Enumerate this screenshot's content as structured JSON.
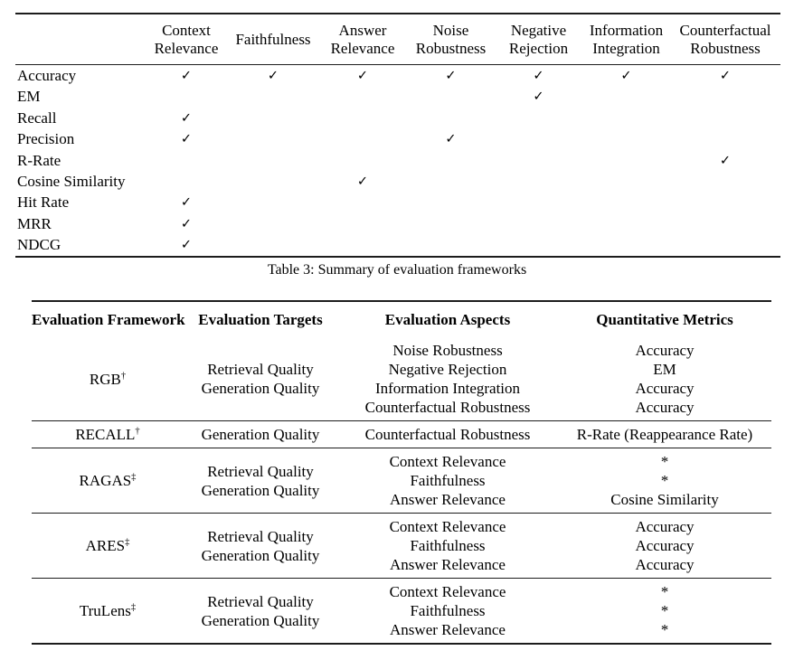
{
  "colors": {
    "background": "#ffffff",
    "text": "#000000",
    "rule": "#1c1c1c"
  },
  "check_glyph": "✓",
  "table1": {
    "columns": [
      {
        "label": "Context Relevance",
        "lines": [
          "Context",
          "Relevance"
        ]
      },
      {
        "label": "Faithfulness",
        "lines": [
          "Faithfulness"
        ]
      },
      {
        "label": "Answer Relevance",
        "lines": [
          "Answer",
          "Relevance"
        ]
      },
      {
        "label": "Noise Robustness",
        "lines": [
          "Noise",
          "Robustness"
        ]
      },
      {
        "label": "Negative Rejection",
        "lines": [
          "Negative",
          "Rejection"
        ]
      },
      {
        "label": "Information Integration",
        "lines": [
          "Information",
          "Integration"
        ]
      },
      {
        "label": "Counterfactual Robustness",
        "lines": [
          "Counterfactual",
          "Robustness"
        ]
      }
    ],
    "rows": [
      {
        "label": "Accuracy",
        "checks": [
          1,
          1,
          1,
          1,
          1,
          1,
          1
        ]
      },
      {
        "label": "EM",
        "checks": [
          0,
          0,
          0,
          0,
          1,
          0,
          0
        ]
      },
      {
        "label": "Recall",
        "checks": [
          1,
          0,
          0,
          0,
          0,
          0,
          0
        ]
      },
      {
        "label": "Precision",
        "checks": [
          1,
          0,
          0,
          1,
          0,
          0,
          0
        ]
      },
      {
        "label": "R-Rate",
        "checks": [
          0,
          0,
          0,
          0,
          0,
          0,
          1
        ]
      },
      {
        "label": "Cosine Similarity",
        "checks": [
          0,
          0,
          1,
          0,
          0,
          0,
          0
        ]
      },
      {
        "label": "Hit Rate",
        "checks": [
          1,
          0,
          0,
          0,
          0,
          0,
          0
        ]
      },
      {
        "label": "MRR",
        "checks": [
          1,
          0,
          0,
          0,
          0,
          0,
          0
        ]
      },
      {
        "label": "NDCG",
        "checks": [
          1,
          0,
          0,
          0,
          0,
          0,
          0
        ]
      }
    ]
  },
  "caption": "Table 3: Summary of evaluation frameworks",
  "table2": {
    "headers": [
      "Evaluation Framework",
      "Evaluation Targets",
      "Evaluation Aspects",
      "Quantitative Metrics"
    ],
    "rows": [
      {
        "framework": "RGB",
        "sup": "†",
        "targets": [
          "Retrieval Quality",
          "Generation Quality"
        ],
        "aspects": [
          "Noise Robustness",
          "Negative Rejection",
          "Information Integration",
          "Counterfactual Robustness"
        ],
        "metrics": [
          "Accuracy",
          "EM",
          "Accuracy",
          "Accuracy"
        ]
      },
      {
        "framework": "RECALL",
        "sup": "†",
        "targets": [
          "Generation Quality"
        ],
        "aspects": [
          "Counterfactual Robustness"
        ],
        "metrics": [
          "R-Rate (Reappearance Rate)"
        ]
      },
      {
        "framework": "RAGAS",
        "sup": "‡",
        "targets": [
          "Retrieval Quality",
          "Generation Quality"
        ],
        "aspects": [
          "Context Relevance",
          "Faithfulness",
          "Answer Relevance"
        ],
        "metrics": [
          "*",
          "*",
          "Cosine Similarity"
        ]
      },
      {
        "framework": "ARES",
        "sup": "‡",
        "targets": [
          "Retrieval Quality",
          "Generation Quality"
        ],
        "aspects": [
          "Context Relevance",
          "Faithfulness",
          "Answer Relevance"
        ],
        "metrics": [
          "Accuracy",
          "Accuracy",
          "Accuracy"
        ]
      },
      {
        "framework": "TruLens",
        "sup": "‡",
        "targets": [
          "Retrieval Quality",
          "Generation Quality"
        ],
        "aspects": [
          "Context Relevance",
          "Faithfulness",
          "Answer Relevance"
        ],
        "metrics": [
          "*",
          "*",
          "*"
        ]
      }
    ]
  }
}
